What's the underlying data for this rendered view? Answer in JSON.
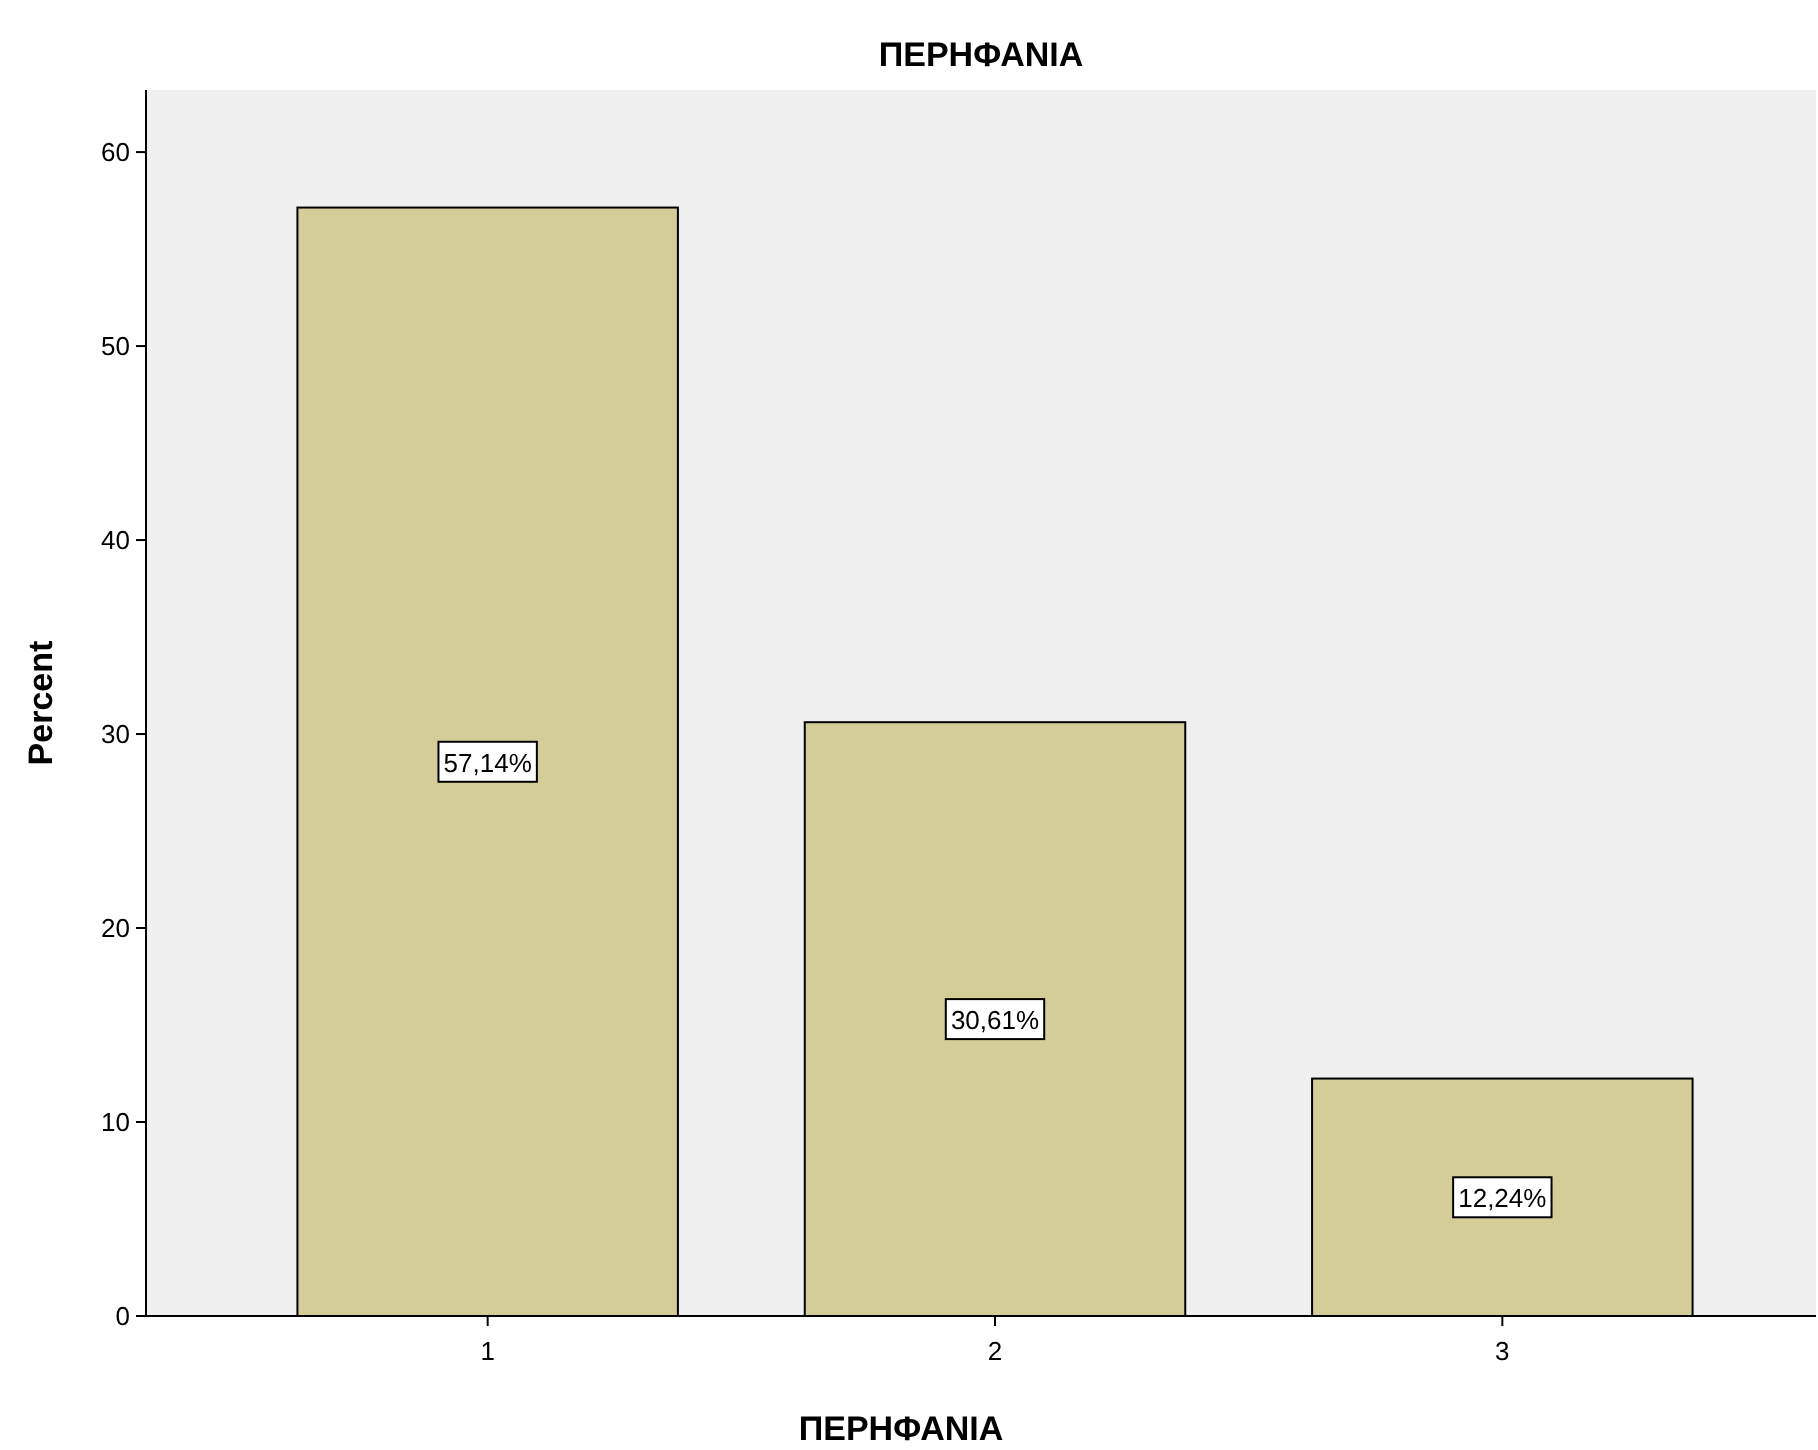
{
  "chart_data": {
    "type": "bar",
    "title": "ΠΕΡΗΦΑΝΙΑ",
    "xlabel": "ΠΕΡΗΦΑΝΙΑ",
    "ylabel": "Percent",
    "categories": [
      "1",
      "2",
      "3"
    ],
    "values": [
      57.14,
      30.61,
      12.24
    ],
    "color": "#d3ce97",
    "value_labels": [
      "57,14%",
      "30,61%",
      "12,24%"
    ],
    "ylim": [
      0,
      63.2
    ],
    "yticks": [
      0,
      10,
      20,
      30,
      40,
      50,
      60
    ],
    "grid": false
  }
}
